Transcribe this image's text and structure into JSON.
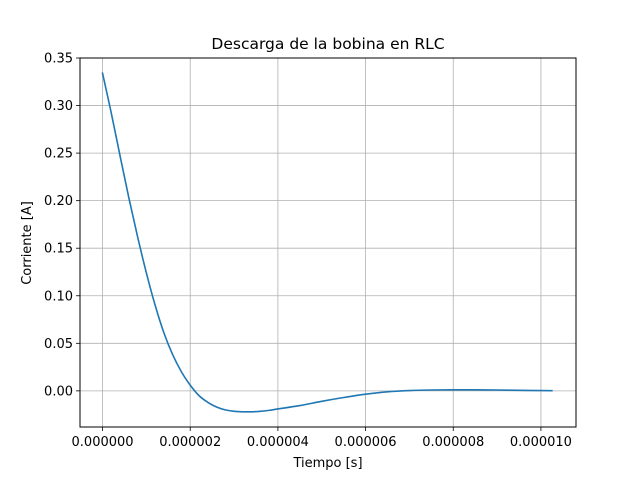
{
  "chart_data": {
    "type": "line",
    "title": "Descarga de la bobina en RLC",
    "xlabel": "Tiempo [s]",
    "ylabel": "Corriente [A]",
    "xlim": [
      -5.14e-07,
      1.08e-05
    ],
    "ylim": [
      -0.038,
      0.35
    ],
    "grid": true,
    "x_ticks": [
      0,
      2e-06,
      4e-06,
      6e-06,
      8e-06,
      1e-05
    ],
    "x_tick_labels": [
      "0.000000",
      "0.000002",
      "0.000004",
      "0.000006",
      "0.000008",
      "0.000010"
    ],
    "y_ticks": [
      0,
      0.05,
      0.1,
      0.15,
      0.2,
      0.25,
      0.3,
      0.35
    ],
    "y_tick_labels": [
      "0.00",
      "0.05",
      "0.10",
      "0.15",
      "0.20",
      "0.25",
      "0.30",
      "0.35"
    ],
    "series": [
      {
        "color": "#1f77b4",
        "x": [
          0,
          2e-07,
          4e-07,
          6e-07,
          8e-07,
          1e-06,
          1.2e-06,
          1.4e-06,
          1.6e-06,
          1.8e-06,
          2e-06,
          2.2e-06,
          2.4e-06,
          2.6e-06,
          2.8e-06,
          3e-06,
          3.2e-06,
          3.4e-06,
          3.6e-06,
          3.8e-06,
          4e-06,
          4.5e-06,
          5e-06,
          5.5e-06,
          6e-06,
          6.5e-06,
          7e-06,
          7.5e-06,
          8e-06,
          8.5e-06,
          9e-06,
          9.5e-06,
          1e-05,
          1.025e-05
        ],
        "y": [
          0.334,
          0.292,
          0.247,
          0.203,
          0.162,
          0.124,
          0.09,
          0.061,
          0.038,
          0.02,
          0.006,
          -0.005,
          -0.012,
          -0.017,
          -0.02,
          -0.0215,
          -0.022,
          -0.022,
          -0.0215,
          -0.0205,
          -0.019,
          -0.0155,
          -0.011,
          -0.007,
          -0.0035,
          -0.001,
          0.0003,
          0.0009,
          0.0011,
          0.0011,
          0.0009,
          0.0006,
          0.0003,
          0.0002
        ]
      }
    ]
  }
}
